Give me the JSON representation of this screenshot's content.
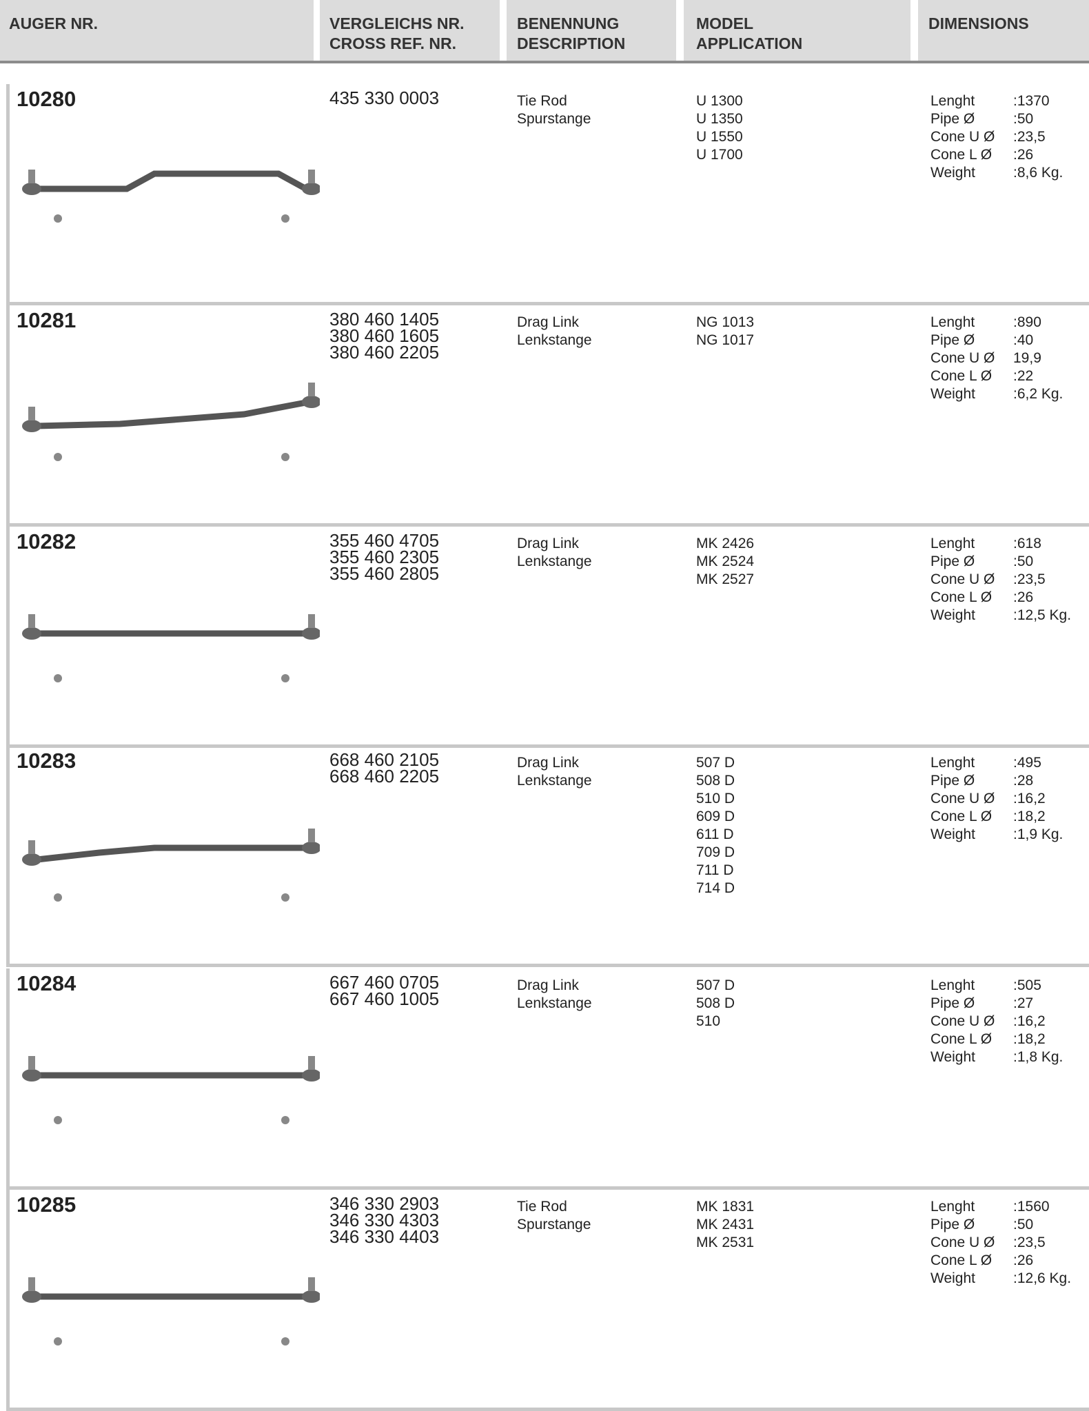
{
  "header": {
    "columns": [
      [
        "AUGER NR."
      ],
      [
        "VERGLEICHS NR.",
        "CROSS REF. NR."
      ],
      [
        "BENENNUNG",
        "DESCRIPTION"
      ],
      [
        "MODEL",
        "APPLICATION"
      ],
      [
        "DIMENSIONS"
      ]
    ]
  },
  "rows": [
    {
      "auger": "10280",
      "cross_refs": [
        "435 330 0003"
      ],
      "description": [
        "Tie Rod",
        "Spurstange"
      ],
      "models": [
        "U 1300",
        "U 1350",
        "U 1550",
        "U 1700"
      ],
      "dimensions": [
        {
          "label": "Lenght",
          "value": ":1370"
        },
        {
          "label": "Pipe Ø",
          "value": ":50"
        },
        {
          "label": "Cone U Ø",
          "value": ":23,5"
        },
        {
          "label": "Cone L Ø",
          "value": ":26"
        },
        {
          "label": "Weight",
          "value": ":8,6 Kg."
        }
      ]
    },
    {
      "auger": "10281",
      "cross_refs": [
        "380 460 1405",
        "380 460 1605",
        "380 460 2205"
      ],
      "description": [
        "Drag Link",
        "Lenkstange"
      ],
      "models": [
        "NG 1013",
        "NG 1017"
      ],
      "dimensions": [
        {
          "label": "Lenght",
          "value": ":890"
        },
        {
          "label": "Pipe Ø",
          "value": ":40"
        },
        {
          "label": "Cone U Ø",
          "value": "19,9"
        },
        {
          "label": "Cone L Ø",
          "value": ":22"
        },
        {
          "label": "Weight",
          "value": ":6,2 Kg."
        }
      ]
    },
    {
      "auger": "10282",
      "cross_refs": [
        "355 460 4705",
        "355 460 2305",
        "355 460 2805"
      ],
      "description": [
        "Drag Link",
        "Lenkstange"
      ],
      "models": [
        "MK 2426",
        "MK 2524",
        "MK 2527"
      ],
      "dimensions": [
        {
          "label": "Lenght",
          "value": ":618"
        },
        {
          "label": "Pipe Ø",
          "value": ":50"
        },
        {
          "label": "Cone U Ø",
          "value": ":23,5"
        },
        {
          "label": "Cone L Ø",
          "value": ":26"
        },
        {
          "label": "Weight",
          "value": ":12,5 Kg."
        }
      ]
    },
    {
      "auger": "10283",
      "cross_refs": [
        "668 460 2105",
        "668 460 2205"
      ],
      "description": [
        "Drag Link",
        "Lenkstange"
      ],
      "models": [
        "507 D",
        "508 D",
        "510 D",
        "609 D",
        "611 D",
        "709 D",
        "711 D",
        "714 D"
      ],
      "dimensions": [
        {
          "label": "Lenght",
          "value": ":495"
        },
        {
          "label": "Pipe Ø",
          "value": ":28"
        },
        {
          "label": "Cone U Ø",
          "value": ":16,2"
        },
        {
          "label": "Cone L Ø",
          "value": ":18,2"
        },
        {
          "label": "Weight",
          "value": ":1,9 Kg."
        }
      ]
    },
    {
      "auger": "10284",
      "cross_refs": [
        "667 460 0705",
        "667 460 1005"
      ],
      "description": [
        "Drag Link",
        "Lenkstange"
      ],
      "models": [
        "507 D",
        "508 D",
        "510"
      ],
      "dimensions": [
        {
          "label": "Lenght",
          "value": ":505"
        },
        {
          "label": "Pipe Ø",
          "value": ":27"
        },
        {
          "label": "Cone U Ø",
          "value": ":16,2"
        },
        {
          "label": "Cone L Ø",
          "value": ":18,2"
        },
        {
          "label": "Weight",
          "value": ":1,8 Kg."
        }
      ]
    },
    {
      "auger": "10285",
      "cross_refs": [
        "346 330 2903",
        "346 330 4303",
        "346 330 4403"
      ],
      "description": [
        "Tie Rod",
        "Spurstange"
      ],
      "models": [
        "MK 1831",
        "MK 2431",
        "MK 2531"
      ],
      "dimensions": [
        {
          "label": "Lenght",
          "value": ":1560"
        },
        {
          "label": "Pipe Ø",
          "value": ":50"
        },
        {
          "label": "Cone U Ø",
          "value": ":23,5"
        },
        {
          "label": "Cone L Ø",
          "value": ":26"
        },
        {
          "label": "Weight",
          "value": ":12,6 Kg."
        }
      ]
    }
  ]
}
